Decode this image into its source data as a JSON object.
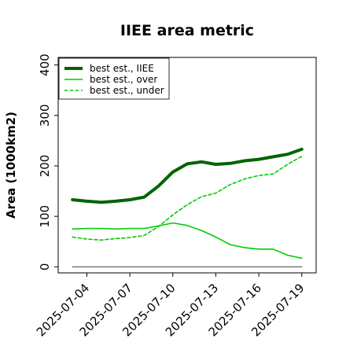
{
  "chart_data": {
    "type": "line",
    "title": "IIEE area metric",
    "xlabel": "",
    "ylabel": "Area (1000km2)",
    "x": [
      "2025-07-03",
      "2025-07-04",
      "2025-07-05",
      "2025-07-06",
      "2025-07-07",
      "2025-07-08",
      "2025-07-09",
      "2025-07-10",
      "2025-07-11",
      "2025-07-12",
      "2025-07-13",
      "2025-07-14",
      "2025-07-15",
      "2025-07-16",
      "2025-07-17",
      "2025-07-18",
      "2025-07-19"
    ],
    "xticks": [
      "2025-07-04",
      "2025-07-07",
      "2025-07-10",
      "2025-07-13",
      "2025-07-16",
      "2025-07-19"
    ],
    "yticks": [
      0,
      100,
      200,
      300,
      400
    ],
    "ylim": [
      -12,
      415
    ],
    "xlim": [
      "2025-07-02",
      "2025-07-20"
    ],
    "legend_position": "top-left",
    "series": [
      {
        "name": "best est., IIEE",
        "color": "#006400",
        "style": "solid-thick",
        "values": [
          133,
          130,
          128,
          130,
          133,
          138,
          160,
          188,
          204,
          208,
          203,
          205,
          210,
          213,
          218,
          223,
          233
        ]
      },
      {
        "name": "best est., over",
        "color": "#00cc00",
        "style": "solid",
        "values": [
          75,
          76,
          76,
          75,
          76,
          76,
          81,
          87,
          82,
          72,
          59,
          44,
          38,
          35,
          35,
          23,
          17
        ]
      },
      {
        "name": "best est., under",
        "color": "#00cc00",
        "style": "dashed",
        "values": [
          59,
          55,
          53,
          56,
          58,
          62,
          80,
          103,
          123,
          139,
          146,
          163,
          174,
          181,
          184,
          203,
          219
        ]
      },
      {
        "name": "",
        "color": "#555555",
        "style": "baseline",
        "values": [
          0,
          0,
          0,
          0,
          0,
          0,
          0,
          0,
          0,
          0,
          0,
          0,
          0,
          0,
          0,
          0,
          0
        ]
      }
    ]
  }
}
